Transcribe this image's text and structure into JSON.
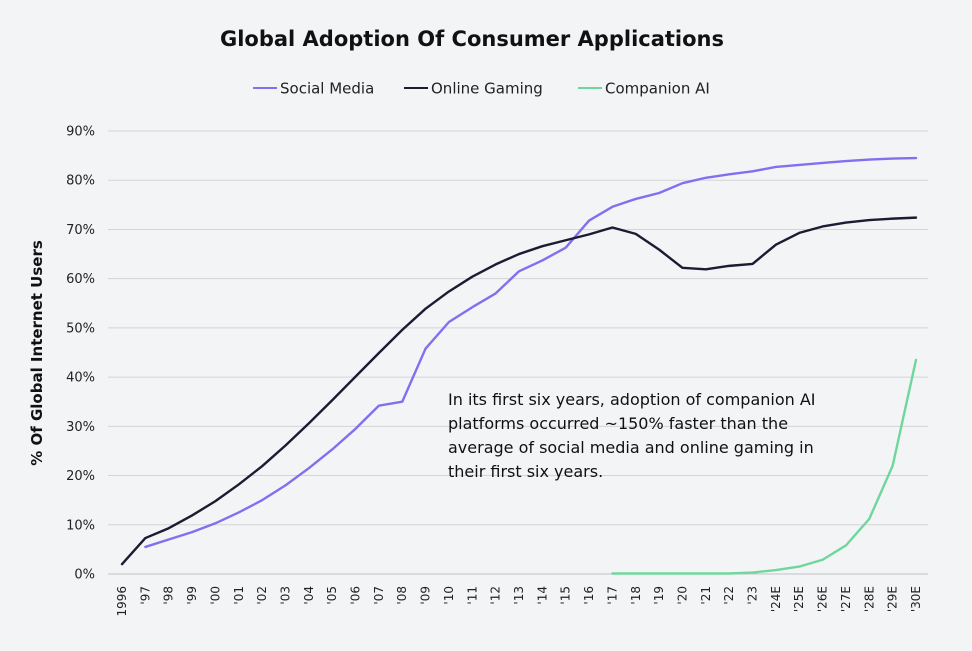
{
  "chart_data": {
    "type": "line",
    "title": "Global Adoption Of Consumer Applications",
    "ylabel": "% Of Global Internet Users",
    "ylim": [
      0,
      90
    ],
    "yticks": [
      "0%",
      "10%",
      "20%",
      "30%",
      "40%",
      "50%",
      "60%",
      "70%",
      "80%",
      "90%"
    ],
    "ytick_values": [
      0,
      10,
      20,
      30,
      40,
      50,
      60,
      70,
      80,
      90
    ],
    "grid": true,
    "legend_position": "top-center",
    "categories": [
      "1996",
      "'97",
      "'98",
      "'99",
      "'00",
      "'01",
      "'02",
      "'03",
      "'04",
      "'05",
      "'06",
      "'07",
      "'08",
      "'09",
      "'10",
      "'11",
      "'12",
      "'13",
      "'14",
      "'15",
      "'16",
      "'17",
      "'18",
      "'19",
      "'20",
      "'21",
      "'22",
      "'23",
      "'24E",
      "'25E",
      "'26E",
      "'27E",
      "'28E",
      "'29E",
      "'30E"
    ],
    "series": [
      {
        "name": "Social Media",
        "color": "#8070f0",
        "values": [
          null,
          5.5,
          7,
          8.5,
          10.3,
          12.5,
          15,
          18,
          21.5,
          25.3,
          29.5,
          34.2,
          35,
          45.8,
          51.2,
          54.2,
          57,
          61.5,
          63.7,
          66.3,
          71.8,
          74.6,
          76.2,
          77.4,
          79.4,
          80.5,
          81.2,
          81.8,
          82.7,
          83.1,
          83.5,
          83.9,
          84.2,
          84.4,
          84.5
        ]
      },
      {
        "name": "Online Gaming",
        "color": "#1c1b33",
        "values": [
          2,
          7.3,
          9.3,
          11.9,
          14.8,
          18.2,
          21.9,
          26.1,
          30.6,
          35.3,
          40.1,
          44.9,
          49.6,
          53.9,
          57.4,
          60.4,
          62.9,
          65,
          66.6,
          67.8,
          69,
          70.4,
          69.1,
          65.9,
          62.2,
          61.9,
          62.6,
          63,
          66.9,
          69.3,
          70.6,
          71.4,
          71.9,
          72.2,
          72.4
        ]
      },
      {
        "name": "Companion AI",
        "color": "#6fd79b",
        "values": [
          null,
          null,
          null,
          null,
          null,
          null,
          null,
          null,
          null,
          null,
          null,
          null,
          null,
          null,
          null,
          null,
          null,
          null,
          null,
          null,
          null,
          0.1,
          0.1,
          0.1,
          0.1,
          0.1,
          0.1,
          0.3,
          0.8,
          1.5,
          2.9,
          5.8,
          11.2,
          22,
          43.5
        ]
      }
    ],
    "annotation": [
      "In its first six years, adoption of companion AI",
      "platforms occurred ~150% faster than the",
      "average of social media and online gaming in",
      "their first six years."
    ]
  }
}
